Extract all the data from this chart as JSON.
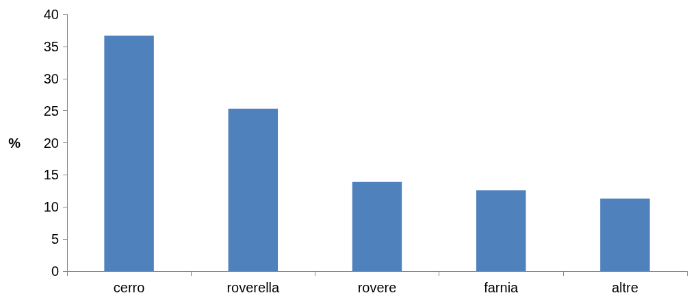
{
  "chart_data": {
    "type": "bar",
    "ylabel": "%",
    "categories": [
      "cerro",
      "roverella",
      "rovere",
      "farnia",
      "altre"
    ],
    "values": [
      36.7,
      25.3,
      13.9,
      12.6,
      11.3
    ],
    "color": "#4f81bd",
    "ylim": [
      0,
      40
    ],
    "yticks": [
      0,
      5,
      10,
      15,
      20,
      25,
      30,
      35,
      40
    ],
    "grid": false
  }
}
